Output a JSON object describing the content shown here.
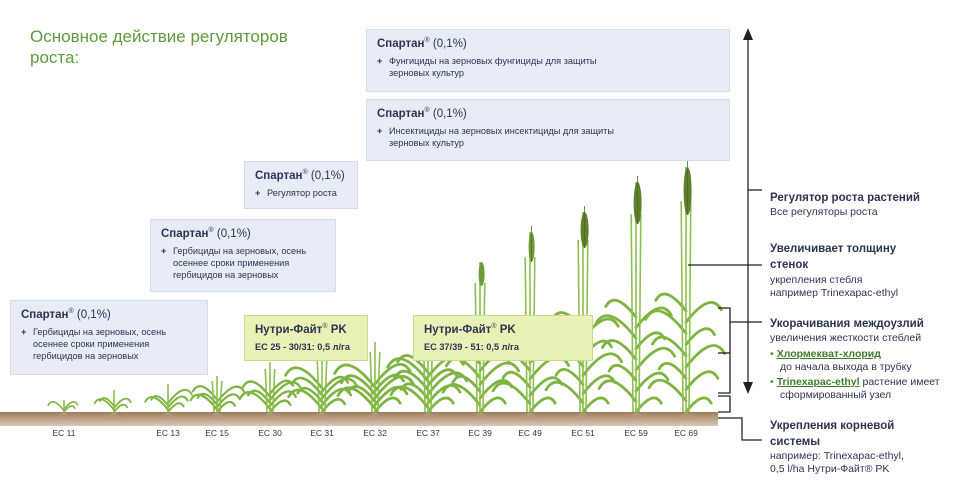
{
  "title": {
    "line1": "Основное действие регуляторов",
    "line2": "роста:"
  },
  "colors": {
    "title": "#5f9a3c",
    "box": "#e7ecf6",
    "nutri_box": "#e9f1b6",
    "text": "#2c3550",
    "soil": "#8a6a4e"
  },
  "boxes": [
    {
      "brand": "Спартан",
      "reg": "®",
      "rate": "(0,1%)",
      "plus": "+",
      "text": "Гербициды на зерновых, осень осеннее сроки применения гербицидов на зерновых"
    },
    {
      "brand": "Спартан",
      "reg": "®",
      "rate": "(0,1%)",
      "plus": "+",
      "text": "Гербициды на зерновых, осень осеннее сроки применения гербицидов на зерновых"
    },
    {
      "brand": "Спартан",
      "reg": "®",
      "rate": "(0,1%)",
      "plus": "+",
      "text": "Регулятор роста"
    },
    {
      "brand": "Спартан",
      "reg": "®",
      "rate": "(0,1%)",
      "plus": "+",
      "text": "Инсектициды на зерновых инсектициды для защиты зерновых культур"
    },
    {
      "brand": "Спартан",
      "reg": "®",
      "rate": "(0,1%)",
      "plus": "+",
      "text": "Фунгициды на зерновых фунгициды для защиты зерновых культур"
    }
  ],
  "nutri": [
    {
      "name": "Нутри-Файт",
      "reg": "®",
      "suffix": "PK",
      "dose": "EC 25 - 30/31: 0,5 л/га"
    },
    {
      "name": "Нутри-Файт",
      "reg": "®",
      "suffix": "PK",
      "dose": "EC 37/39 - 51: 0,5 л/га"
    }
  ],
  "stages": [
    "EC 11",
    "EC 13",
    "EC 15",
    "EC 30",
    "EC 31",
    "EC 32",
    "EC 37",
    "EC 39",
    "EC 49",
    "EC 51",
    "EC 59",
    "EC 69"
  ],
  "right": {
    "growth_reg": {
      "head": "Регулятор роста растений",
      "sub": "Все регуляторы роста"
    },
    "wall": {
      "head1": "Увеличивает толщину",
      "head2": "стенок",
      "sub1": "укрепления стебля",
      "sub2": "например Trinexapac-ethyl"
    },
    "internode": {
      "head": "Укорачивания междоузлий",
      "sub": "увеличения жесткости стеблей",
      "bullet": "•",
      "chem1": "Хлормекват-хлорид",
      "chem1_note": "до начала выхода в трубку",
      "chem2": "Trinexapac-ethyl",
      "chem2_note1": "растение имеет",
      "chem2_note2": "сформированный узел"
    },
    "root": {
      "head1": "Укрепления корневой",
      "head2": "системы",
      "sub1": "например: Trinexapac-ethyl,",
      "sub2": "0,5 l/ha Нутри-Файт® PK"
    }
  }
}
